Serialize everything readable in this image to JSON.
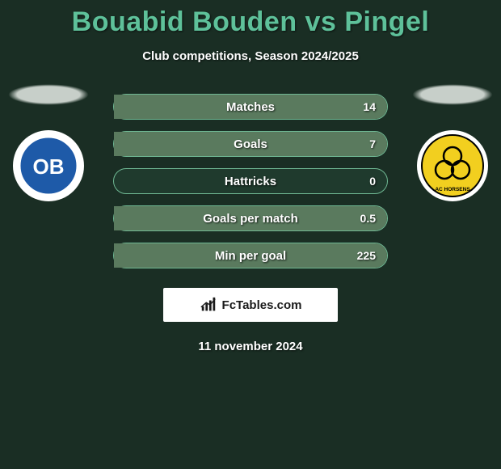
{
  "header": {
    "title": "Bouabid Bouden vs Pingel",
    "subtitle": "Club competitions, Season 2024/2025",
    "title_color": "#5ec19a",
    "title_fontsize": 34
  },
  "background_color": "#1a2e24",
  "players": {
    "left": {
      "club_abbr": "OB",
      "logo_bg": "#ffffff",
      "logo_inner_bg": "#1e5aa8",
      "logo_text_color": "#ffffff"
    },
    "right": {
      "club_abbr": "AC HORSENS",
      "logo_bg": "#ffffff",
      "logo_inner_bg": "#f2cf1f",
      "logo_text_color": "#000000"
    }
  },
  "stats": {
    "bar_border_color": "#6fb893",
    "bar_bg": "#1f3a2d",
    "fill_left_color": "#33423a",
    "fill_right_color": "#5a7a5e",
    "label_fontsize": 15,
    "value_fontsize": 14,
    "rows": [
      {
        "label": "Matches",
        "left": "",
        "right": "14",
        "left_pct": 0,
        "right_pct": 100
      },
      {
        "label": "Goals",
        "left": "",
        "right": "7",
        "left_pct": 0,
        "right_pct": 100
      },
      {
        "label": "Hattricks",
        "left": "",
        "right": "0",
        "left_pct": 0,
        "right_pct": 0
      },
      {
        "label": "Goals per match",
        "left": "",
        "right": "0.5",
        "left_pct": 0,
        "right_pct": 100
      },
      {
        "label": "Min per goal",
        "left": "",
        "right": "225",
        "left_pct": 0,
        "right_pct": 100
      }
    ]
  },
  "brand": {
    "text": "FcTables.com",
    "box_bg": "#ffffff",
    "text_color": "#1a1a1a",
    "icon_color": "#1a1a1a"
  },
  "footer": {
    "date": "11 november 2024"
  }
}
